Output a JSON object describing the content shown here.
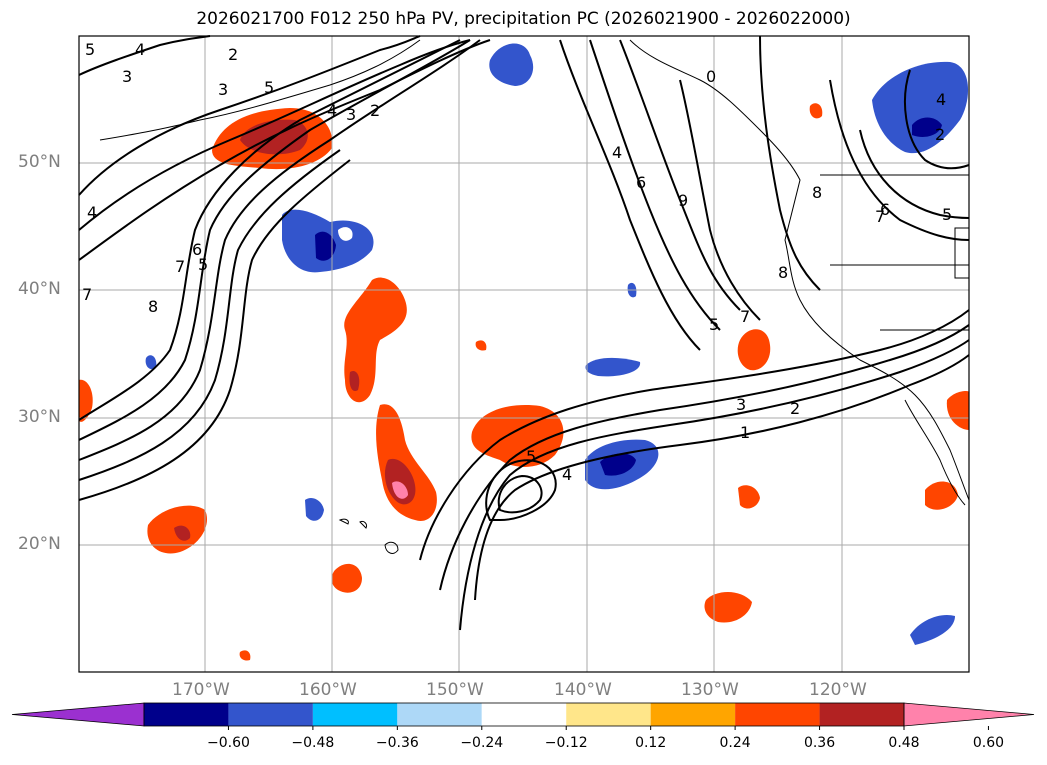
{
  "title": "2026021700 F012 250 hPa PV, precipitation PC (2026021900 - 2026022000)",
  "lat_labels": [
    "50°N",
    "40°N",
    "30°N",
    "20°N"
  ],
  "lon_labels": [
    "170°W",
    "160°W",
    "150°W",
    "140°W",
    "130°W",
    "120°W"
  ],
  "colorbar": {
    "colors": [
      "#9b30d0",
      "#00008b",
      "#3355cc",
      "#00bfff",
      "#add8f7",
      "#ffffff",
      "#ffe68a",
      "#ffa500",
      "#ff4500",
      "#b22222",
      "#ff82ab"
    ],
    "ticks": [
      "−0.60",
      "−0.48",
      "−0.36",
      "−0.24",
      "−0.12",
      "0.12",
      "0.24",
      "0.36",
      "0.48",
      "0.60"
    ]
  },
  "contour_labels": [
    "5",
    "4",
    "3",
    "2",
    "3",
    "5",
    "4",
    "3",
    "2",
    "4",
    "7",
    "6",
    "5",
    "8",
    "7",
    "0",
    "4",
    "6",
    "9",
    "8",
    "7",
    "6",
    "5",
    "4",
    "2",
    "8",
    "5",
    "7",
    "3",
    "2",
    "1",
    "5",
    "4"
  ]
}
